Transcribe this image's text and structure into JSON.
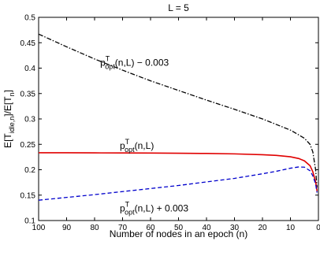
{
  "chart_data": {
    "type": "line",
    "title": "L = 5",
    "xlabel": "Number of nodes in an epoch (n)",
    "ylabel_parts": [
      "E[T",
      "idle,n",
      "]/E[T",
      "n",
      "]"
    ],
    "x_reversed": true,
    "xlim": [
      100,
      0
    ],
    "ylim": [
      0.1,
      0.5
    ],
    "x_ticks": [
      100,
      90,
      80,
      70,
      60,
      50,
      40,
      30,
      20,
      10,
      0
    ],
    "y_ticks": [
      0.1,
      0.15,
      0.2,
      0.25,
      0.3,
      0.35,
      0.4,
      0.45,
      0.5
    ],
    "grid": false,
    "series": [
      {
        "key": "upper",
        "color": "#000000",
        "dash": "dashdot",
        "points": [
          [
            100,
            0.467
          ],
          [
            90,
            0.442
          ],
          [
            80,
            0.418
          ],
          [
            70,
            0.396
          ],
          [
            60,
            0.375
          ],
          [
            50,
            0.356
          ],
          [
            40,
            0.337
          ],
          [
            30,
            0.319
          ],
          [
            20,
            0.3
          ],
          [
            10,
            0.278
          ],
          [
            5,
            0.262
          ],
          [
            3,
            0.25
          ],
          [
            2,
            0.235
          ],
          [
            1,
            0.2
          ],
          [
            0.5,
            0.165
          ]
        ]
      },
      {
        "key": "opt",
        "color": "#e00000",
        "dash": "solid",
        "points": [
          [
            100,
            0.2335
          ],
          [
            90,
            0.2334
          ],
          [
            80,
            0.2332
          ],
          [
            70,
            0.233
          ],
          [
            60,
            0.2328
          ],
          [
            50,
            0.2325
          ],
          [
            40,
            0.232
          ],
          [
            30,
            0.2312
          ],
          [
            20,
            0.2296
          ],
          [
            15,
            0.2282
          ],
          [
            10,
            0.2255
          ],
          [
            7,
            0.222
          ],
          [
            5,
            0.2175
          ],
          [
            3,
            0.208
          ],
          [
            2,
            0.196
          ],
          [
            1,
            0.176
          ],
          [
            0.5,
            0.158
          ]
        ]
      },
      {
        "key": "lower",
        "color": "#0000cc",
        "dash": "dashed",
        "points": [
          [
            100,
            0.14
          ],
          [
            90,
            0.1455
          ],
          [
            80,
            0.151
          ],
          [
            70,
            0.157
          ],
          [
            60,
            0.163
          ],
          [
            50,
            0.169
          ],
          [
            40,
            0.176
          ],
          [
            30,
            0.183
          ],
          [
            20,
            0.192
          ],
          [
            15,
            0.197
          ],
          [
            10,
            0.203
          ],
          [
            7,
            0.2055
          ],
          [
            5,
            0.205
          ],
          [
            3,
            0.198
          ],
          [
            2,
            0.188
          ],
          [
            1,
            0.172
          ],
          [
            0.5,
            0.155
          ]
        ]
      }
    ],
    "annotations": [
      {
        "key": "upper",
        "main": "p",
        "sup": "T",
        "sub": "opt",
        "rest": "(n,L) − 0.003",
        "x": 78,
        "y": 0.405
      },
      {
        "key": "opt",
        "main": "p",
        "sup": "T",
        "sub": "opt",
        "rest": "(n,L)",
        "x": 71,
        "y": 0.241
      },
      {
        "key": "lower",
        "main": "p",
        "sup": "T",
        "sub": "opt",
        "rest": "(n,L) + 0.003",
        "x": 71,
        "y": 0.118
      }
    ]
  }
}
